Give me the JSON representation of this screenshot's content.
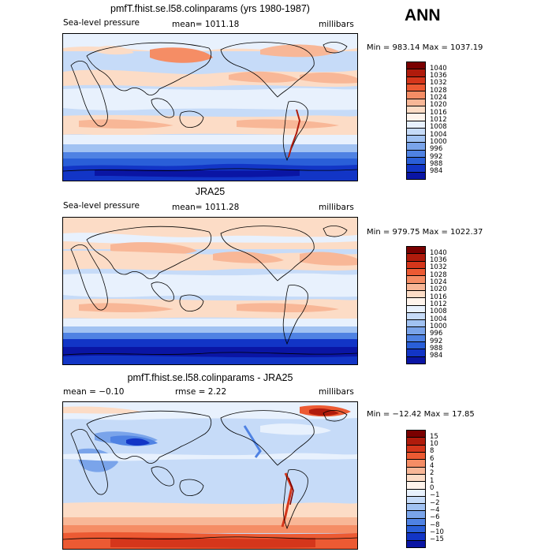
{
  "season": "ANN",
  "panels": [
    {
      "title": "pmfT.fhist.se.l58.colinparams (yrs 1980-1987)",
      "left_label": "Sea-level pressure",
      "center_label": "mean= 1011.18",
      "right_label": "millibars",
      "minmax": "Min = 983.14 Max = 1037.19",
      "colorbar_labels": [
        "1040",
        "1036",
        "1032",
        "1028",
        "1024",
        "1020",
        "1016",
        "1012",
        "1008",
        "1004",
        "1000",
        "996",
        "992",
        "988",
        "984"
      ]
    },
    {
      "title": "JRA25",
      "left_label": "Sea-level pressure",
      "center_label": "mean= 1011.28",
      "right_label": "millibars",
      "minmax": "Min = 979.75 Max = 1022.37",
      "colorbar_labels": [
        "1040",
        "1036",
        "1032",
        "1028",
        "1024",
        "1020",
        "1016",
        "1012",
        "1008",
        "1004",
        "1000",
        "996",
        "992",
        "988",
        "984"
      ]
    },
    {
      "title": "pmfT.fhist.se.l58.colinparams - JRA25",
      "left_label": "mean =  −0.10",
      "center_label": "rmse =   2.22",
      "right_label": "millibars",
      "minmax": "Min = −12.42 Max =  17.85",
      "colorbar_labels": [
        "15",
        "10",
        "8",
        "6",
        "4",
        "2",
        "1",
        "0",
        "−1",
        "−2",
        "−4",
        "−6",
        "−8",
        "−10",
        "−15"
      ]
    }
  ],
  "colors": {
    "abs_scale": [
      "#7a0000",
      "#b01b0c",
      "#d5361b",
      "#ec5a33",
      "#f58d65",
      "#f8b797",
      "#fcdcc6",
      "#fff4ec",
      "#e8f1fd",
      "#c6dbf8",
      "#a1c2f2",
      "#7aa4ea",
      "#4f82e3",
      "#2a5fd8",
      "#1235c6",
      "#0a15a4"
    ],
    "diff_scale": [
      "#7a0000",
      "#b01b0c",
      "#d5361b",
      "#ec5a33",
      "#f58d65",
      "#f8b797",
      "#fcdcc6",
      "#fff4ec",
      "#e8f1fd",
      "#c6dbf8",
      "#a1c2f2",
      "#7aa4ea",
      "#4f82e3",
      "#2a5fd8",
      "#1235c6",
      "#0a15a4"
    ]
  }
}
